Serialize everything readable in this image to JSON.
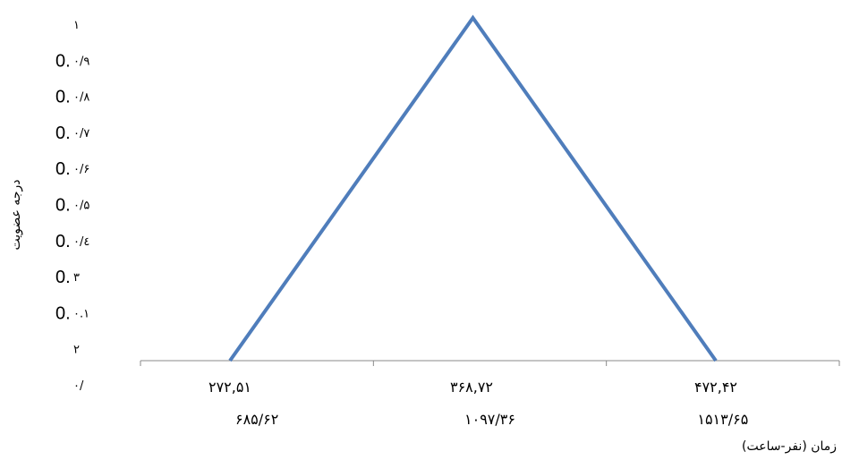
{
  "chart_data": {
    "type": "line",
    "ylabel": "درجه عضویت",
    "xlabel": "زمان (نفر-ساعت)",
    "ylim": [
      0,
      1
    ],
    "grid": false,
    "y_ticks": [
      "۰/",
      "۲",
      "۰.۱",
      "۳",
      "۰/٤",
      "۰/۵",
      "۰/۶",
      "۰/۷",
      "۰/۸",
      "۰/۹",
      "۱"
    ],
    "y_ghost_label": "0.",
    "x_point_labels": [
      "۲۷۲,۵۱",
      "۳۶۸,۷۲",
      "۴۷۲,۴۲"
    ],
    "x_category_labels": [
      "۶۸۵/۶۲",
      "۱۰۹۷/۳۶",
      "۱۵۱۳/۶۵"
    ],
    "series": [
      {
        "color": "#4f7dbb",
        "x": [
          0,
          0.5,
          1
        ],
        "y": [
          0,
          1,
          0
        ]
      }
    ]
  }
}
